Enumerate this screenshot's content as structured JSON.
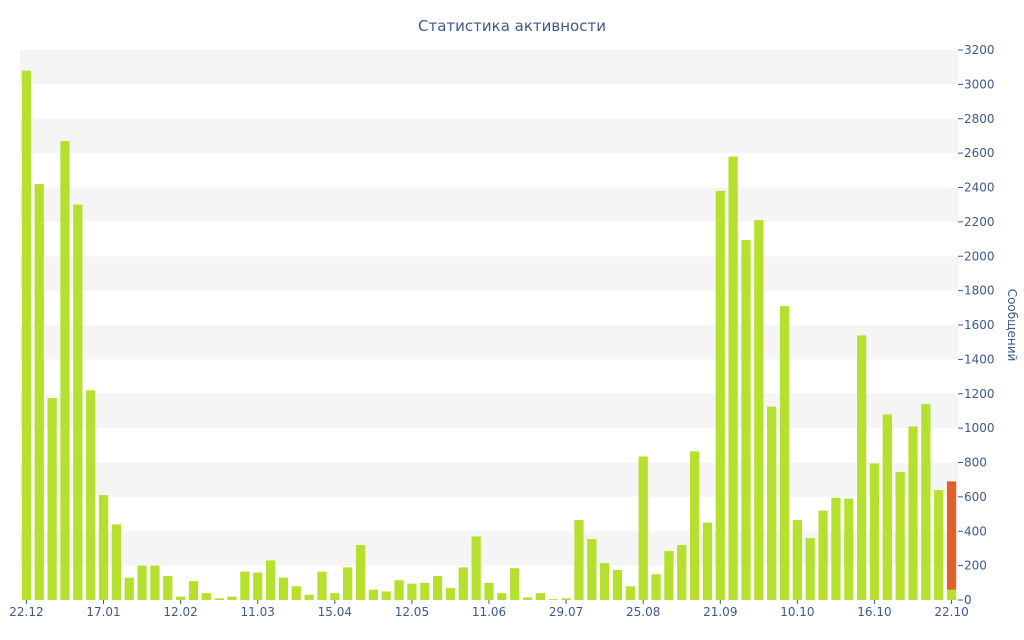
{
  "chart_data": {
    "type": "bar",
    "title": "Статистика активности",
    "ylabel": "Сообщений",
    "xlabel": "",
    "ylim": [
      0,
      3200
    ],
    "y_ticks": [
      0,
      200,
      400,
      600,
      800,
      1000,
      1200,
      1400,
      1600,
      1800,
      2000,
      2200,
      2400,
      2600,
      2800,
      3000,
      3200
    ],
    "y_axis_position": "right",
    "x_tick_labels": [
      {
        "label": "22.12",
        "index": 0
      },
      {
        "label": "17.01",
        "index": 6
      },
      {
        "label": "12.02",
        "index": 12
      },
      {
        "label": "11.03",
        "index": 18
      },
      {
        "label": "15.04",
        "index": 24
      },
      {
        "label": "12.05",
        "index": 30
      },
      {
        "label": "11.06",
        "index": 36
      },
      {
        "label": "29.07",
        "index": 42
      },
      {
        "label": "25.08",
        "index": 48
      },
      {
        "label": "21.09",
        "index": 54
      },
      {
        "label": "10.10",
        "index": 60
      },
      {
        "label": "16.10",
        "index": 66
      },
      {
        "label": "22.10",
        "index": 72
      }
    ],
    "values": [
      3080,
      2420,
      1175,
      2670,
      2300,
      1220,
      610,
      440,
      130,
      200,
      200,
      140,
      20,
      110,
      40,
      10,
      20,
      165,
      160,
      230,
      130,
      80,
      30,
      165,
      40,
      190,
      320,
      60,
      50,
      115,
      95,
      100,
      140,
      70,
      190,
      370,
      100,
      40,
      185,
      15,
      40,
      5,
      10,
      465,
      355,
      215,
      175,
      80,
      835,
      150,
      285,
      320,
      865,
      450,
      2380,
      2580,
      2095,
      2210,
      1125,
      1710,
      465,
      360,
      520,
      595,
      590,
      1540,
      795,
      1080,
      745,
      1010,
      1140,
      640,
      60
    ],
    "highlight": {
      "index": 72,
      "base": 60,
      "top": 690
    },
    "colors": {
      "bar": "#b5e12e",
      "highlight": "#e0602a",
      "band": "#f5f5f5",
      "text": "#3d5a8a"
    },
    "grid": "alternating-bands"
  }
}
